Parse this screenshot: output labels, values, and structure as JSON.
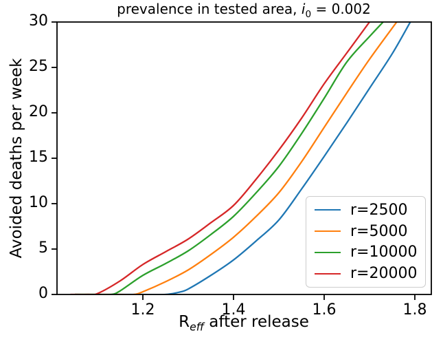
{
  "figure": {
    "title": {
      "prefix": "prevalence in tested area, ",
      "var": "i",
      "var_sub": "0",
      "suffix": " = 0.002"
    },
    "xlabel": {
      "prefix": "R",
      "sub": "eff",
      "suffix": " after release"
    },
    "ylabel": "Avoided deaths per week"
  },
  "chart_data": {
    "type": "line",
    "title": "prevalence in tested area, i_0 = 0.002",
    "xlabel": "R_eff after release",
    "ylabel": "Avoided deaths per week",
    "xlim": [
      1.0106,
      1.8364
    ],
    "ylim": [
      0,
      30
    ],
    "xticks": [
      1.2,
      1.4,
      1.6,
      1.8
    ],
    "xtick_labels": [
      "1.2",
      "1.4",
      "1.6",
      "1.8"
    ],
    "yticks": [
      0,
      5,
      10,
      15,
      20,
      25,
      30
    ],
    "ytick_labels": [
      "0",
      "5",
      "10",
      "15",
      "20",
      "25",
      "30"
    ],
    "grid": false,
    "legend_position": "lower right",
    "series": [
      {
        "name": "r=2500",
        "color": "#1f77b4",
        "points": [
          [
            1.05,
            0
          ],
          [
            1.1,
            0
          ],
          [
            1.15,
            0
          ],
          [
            1.2,
            0
          ],
          [
            1.25,
            0
          ],
          [
            1.28,
            0.25
          ],
          [
            1.3,
            0.6
          ],
          [
            1.35,
            2.1
          ],
          [
            1.4,
            3.8
          ],
          [
            1.45,
            5.9
          ],
          [
            1.5,
            8.2
          ],
          [
            1.55,
            11.6
          ],
          [
            1.6,
            15.2
          ],
          [
            1.65,
            18.9
          ],
          [
            1.7,
            22.7
          ],
          [
            1.75,
            26.5
          ],
          [
            1.79,
            30
          ]
        ]
      },
      {
        "name": "r=5000",
        "color": "#ff7f0e",
        "points": [
          [
            1.05,
            0
          ],
          [
            1.1,
            0
          ],
          [
            1.15,
            0
          ],
          [
            1.18,
            0
          ],
          [
            1.2,
            0.3
          ],
          [
            1.25,
            1.4
          ],
          [
            1.3,
            2.7
          ],
          [
            1.35,
            4.4
          ],
          [
            1.4,
            6.3
          ],
          [
            1.45,
            8.6
          ],
          [
            1.5,
            11.2
          ],
          [
            1.55,
            14.6
          ],
          [
            1.6,
            18.4
          ],
          [
            1.65,
            22.2
          ],
          [
            1.7,
            25.9
          ],
          [
            1.76,
            30
          ]
        ]
      },
      {
        "name": "r=10000",
        "color": "#2ca02c",
        "points": [
          [
            1.05,
            0
          ],
          [
            1.1,
            0
          ],
          [
            1.13,
            0
          ],
          [
            1.15,
            0.4
          ],
          [
            1.2,
            2.1
          ],
          [
            1.25,
            3.4
          ],
          [
            1.3,
            4.8
          ],
          [
            1.35,
            6.6
          ],
          [
            1.4,
            8.6
          ],
          [
            1.45,
            11.2
          ],
          [
            1.5,
            14.1
          ],
          [
            1.55,
            17.7
          ],
          [
            1.6,
            21.6
          ],
          [
            1.65,
            25.6
          ],
          [
            1.7,
            28.4
          ],
          [
            1.73,
            30
          ]
        ]
      },
      {
        "name": "r=20000",
        "color": "#d62728",
        "points": [
          [
            1.04,
            0
          ],
          [
            1.08,
            0
          ],
          [
            1.1,
            0.1
          ],
          [
            1.15,
            1.5
          ],
          [
            1.2,
            3.3
          ],
          [
            1.25,
            4.7
          ],
          [
            1.3,
            6.1
          ],
          [
            1.35,
            7.9
          ],
          [
            1.4,
            9.8
          ],
          [
            1.45,
            12.7
          ],
          [
            1.5,
            15.9
          ],
          [
            1.55,
            19.4
          ],
          [
            1.6,
            23.2
          ],
          [
            1.65,
            26.6
          ],
          [
            1.7,
            30
          ]
        ]
      }
    ]
  }
}
